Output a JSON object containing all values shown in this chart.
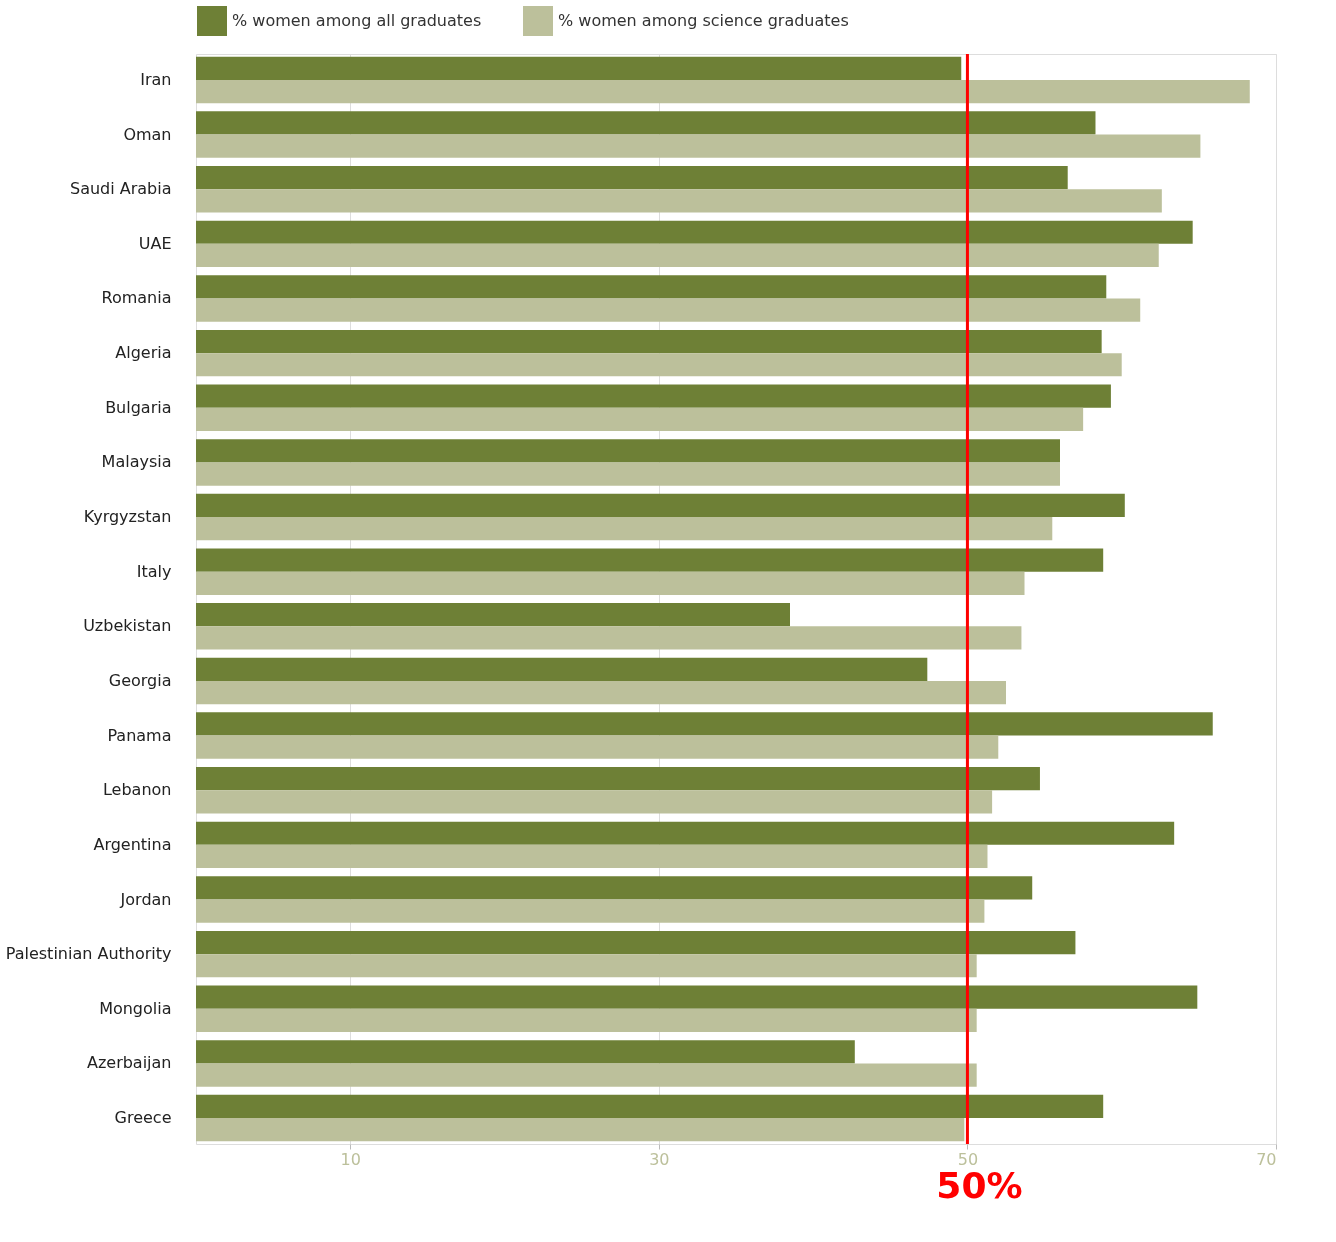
{
  "chart_data": {
    "type": "bar",
    "orientation": "horizontal",
    "categories": [
      "Iran",
      "Oman",
      "Saudi Arabia",
      "UAE",
      "Romania",
      "Algeria",
      "Bulgaria",
      "Malaysia",
      "Kyrgyzstan",
      "Italy",
      "Uzbekistan",
      "Georgia",
      "Panama",
      "Lebanon",
      "Argentina",
      "Jordan",
      "Palestinian Authority",
      "Mongolia",
      "Azerbaijan",
      "Greece"
    ],
    "series": [
      {
        "name": "% women among all graduates",
        "color": "#6e8036",
        "values": [
          49.6,
          58.3,
          56.5,
          64.6,
          59.0,
          58.7,
          59.3,
          56.0,
          60.2,
          58.8,
          38.5,
          47.4,
          65.9,
          54.7,
          63.4,
          54.2,
          57.0,
          64.9,
          42.7,
          58.8
        ]
      },
      {
        "name": "% women among science graduates",
        "color": "#bcc09b",
        "values": [
          68.3,
          65.1,
          62.6,
          62.4,
          61.2,
          60.0,
          57.5,
          56.0,
          55.5,
          53.7,
          53.5,
          52.5,
          52.0,
          51.6,
          51.3,
          51.1,
          50.6,
          50.6,
          50.6,
          49.8
        ]
      }
    ],
    "xlim": [
      0,
      70
    ],
    "xticks": [
      10,
      30,
      50,
      70
    ],
    "grid": "x",
    "legend": "top left",
    "ref_lines": [
      {
        "axis": "x",
        "value": 50,
        "label": "50%",
        "color": "#ff0000"
      }
    ]
  }
}
